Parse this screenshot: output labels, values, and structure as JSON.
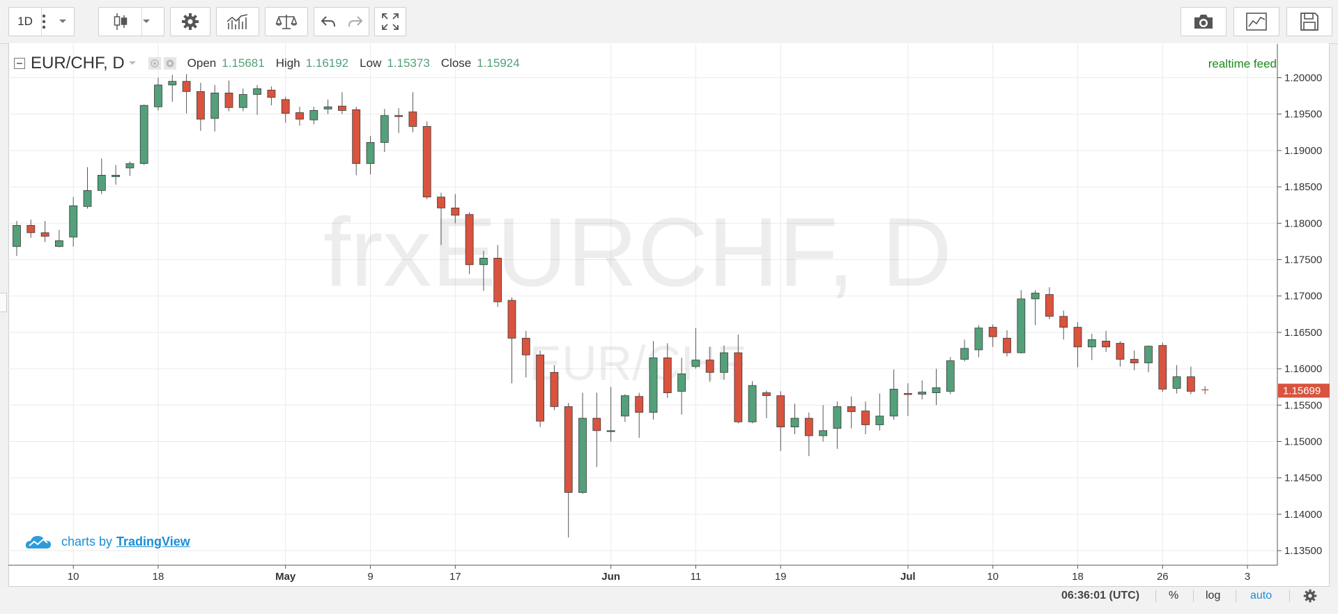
{
  "toolbar": {
    "interval": "1D",
    "icons": [
      "more-vertical-icon",
      "chevron-down-icon",
      "candles-icon",
      "chevron-down-icon",
      "gear-icon",
      "indicators-icon",
      "compare-icon",
      "undo-icon",
      "redo-icon",
      "fullscreen-icon",
      "camera-icon",
      "chart-layout-icon",
      "save-icon"
    ]
  },
  "legend": {
    "symbol": "EUR/CHF, D",
    "open_label": "Open",
    "open_value": "1.15681",
    "high_label": "High",
    "high_value": "1.16192",
    "low_label": "Low",
    "low_value": "1.15373",
    "close_label": "Close",
    "close_value": "1.15924"
  },
  "realtime_label": "realtime feed",
  "watermark": {
    "main": "frxEURCHF, D",
    "sub": "EUR/CHF"
  },
  "brand": {
    "prefix": "charts by",
    "name": "TradingView"
  },
  "status_bar": {
    "time": "06:36:01 (UTC)",
    "percent": "%",
    "log": "log",
    "auto": "auto"
  },
  "colors": {
    "up": "#53a07a",
    "down": "#d9533e",
    "price_badge": "#d9533e",
    "auto_link": "#1a8fd6"
  },
  "chart_data": {
    "type": "candlestick",
    "symbol": "EUR/CHF",
    "interval": "D",
    "y_range": [
      1.1335,
      1.2035
    ],
    "y_ticks": [
      "1.20000",
      "1.19500",
      "1.19000",
      "1.18500",
      "1.18000",
      "1.17500",
      "1.17000",
      "1.16500",
      "1.16000",
      "1.15500",
      "1.15000",
      "1.14500",
      "1.14000",
      "1.13500"
    ],
    "x_ticks": [
      {
        "index": 4,
        "label": "10"
      },
      {
        "index": 10,
        "label": "18"
      },
      {
        "index": 19,
        "label": "May"
      },
      {
        "index": 25,
        "label": "9"
      },
      {
        "index": 31,
        "label": "17"
      },
      {
        "index": 42,
        "label": "Jun"
      },
      {
        "index": 48,
        "label": "11"
      },
      {
        "index": 54,
        "label": "19"
      },
      {
        "index": 63,
        "label": "Jul"
      },
      {
        "index": 69,
        "label": "10"
      },
      {
        "index": 75,
        "label": "18"
      },
      {
        "index": 81,
        "label": "26"
      },
      {
        "index": 87,
        "label": "3"
      }
    ],
    "last_price": "1.15699",
    "candles": [
      {
        "o": 1.1768,
        "h": 1.1803,
        "l": 1.1755,
        "c": 1.1797
      },
      {
        "o": 1.1797,
        "h": 1.1805,
        "l": 1.178,
        "c": 1.1787
      },
      {
        "o": 1.1787,
        "h": 1.1803,
        "l": 1.1774,
        "c": 1.1782
      },
      {
        "o": 1.1768,
        "h": 1.1791,
        "l": 1.1767,
        "c": 1.1776
      },
      {
        "o": 1.1781,
        "h": 1.1836,
        "l": 1.1768,
        "c": 1.1824
      },
      {
        "o": 1.1823,
        "h": 1.1877,
        "l": 1.182,
        "c": 1.1845
      },
      {
        "o": 1.1845,
        "h": 1.1889,
        "l": 1.184,
        "c": 1.1866
      },
      {
        "o": 1.1864,
        "h": 1.188,
        "l": 1.1853,
        "c": 1.1866
      },
      {
        "o": 1.1876,
        "h": 1.1885,
        "l": 1.1865,
        "c": 1.1882
      },
      {
        "o": 1.1882,
        "h": 1.1963,
        "l": 1.188,
        "c": 1.1962
      },
      {
        "o": 1.196,
        "h": 1.2,
        "l": 1.1955,
        "c": 1.199
      },
      {
        "o": 1.199,
        "h": 1.2004,
        "l": 1.1967,
        "c": 1.1995
      },
      {
        "o": 1.1995,
        "h": 1.2005,
        "l": 1.1951,
        "c": 1.1981
      },
      {
        "o": 1.1981,
        "h": 1.1993,
        "l": 1.1927,
        "c": 1.1943
      },
      {
        "o": 1.1944,
        "h": 1.199,
        "l": 1.1926,
        "c": 1.1979
      },
      {
        "o": 1.1979,
        "h": 1.1996,
        "l": 1.1954,
        "c": 1.1959
      },
      {
        "o": 1.1959,
        "h": 1.1985,
        "l": 1.1954,
        "c": 1.1977
      },
      {
        "o": 1.1977,
        "h": 1.199,
        "l": 1.1949,
        "c": 1.1985
      },
      {
        "o": 1.1983,
        "h": 1.1988,
        "l": 1.1962,
        "c": 1.1973
      },
      {
        "o": 1.197,
        "h": 1.1974,
        "l": 1.1938,
        "c": 1.1951
      },
      {
        "o": 1.1952,
        "h": 1.196,
        "l": 1.1934,
        "c": 1.1943
      },
      {
        "o": 1.1942,
        "h": 1.196,
        "l": 1.1936,
        "c": 1.1955
      },
      {
        "o": 1.1957,
        "h": 1.197,
        "l": 1.195,
        "c": 1.196
      },
      {
        "o": 1.1961,
        "h": 1.198,
        "l": 1.195,
        "c": 1.1955
      },
      {
        "o": 1.1956,
        "h": 1.196,
        "l": 1.1866,
        "c": 1.1882
      },
      {
        "o": 1.1882,
        "h": 1.192,
        "l": 1.1867,
        "c": 1.1911
      },
      {
        "o": 1.1911,
        "h": 1.1957,
        "l": 1.1898,
        "c": 1.1948
      },
      {
        "o": 1.1948,
        "h": 1.1958,
        "l": 1.1924,
        "c": 1.1947
      },
      {
        "o": 1.1953,
        "h": 1.198,
        "l": 1.1925,
        "c": 1.1933
      },
      {
        "o": 1.1933,
        "h": 1.194,
        "l": 1.1833,
        "c": 1.1836
      },
      {
        "o": 1.1836,
        "h": 1.1842,
        "l": 1.177,
        "c": 1.1821
      },
      {
        "o": 1.1821,
        "h": 1.184,
        "l": 1.18,
        "c": 1.1811
      },
      {
        "o": 1.1812,
        "h": 1.1815,
        "l": 1.173,
        "c": 1.1743
      },
      {
        "o": 1.1743,
        "h": 1.1762,
        "l": 1.1707,
        "c": 1.1752
      },
      {
        "o": 1.1752,
        "h": 1.177,
        "l": 1.1685,
        "c": 1.1692
      },
      {
        "o": 1.1694,
        "h": 1.1698,
        "l": 1.158,
        "c": 1.1642
      },
      {
        "o": 1.1642,
        "h": 1.1652,
        "l": 1.1588,
        "c": 1.1619
      },
      {
        "o": 1.1619,
        "h": 1.1625,
        "l": 1.152,
        "c": 1.1528
      },
      {
        "o": 1.1595,
        "h": 1.1605,
        "l": 1.1543,
        "c": 1.1548
      },
      {
        "o": 1.1548,
        "h": 1.1553,
        "l": 1.1368,
        "c": 1.143
      },
      {
        "o": 1.143,
        "h": 1.1567,
        "l": 1.1428,
        "c": 1.1532
      },
      {
        "o": 1.1532,
        "h": 1.1567,
        "l": 1.1465,
        "c": 1.1515
      },
      {
        "o": 1.1515,
        "h": 1.1575,
        "l": 1.15,
        "c": 1.1515
      },
      {
        "o": 1.1535,
        "h": 1.1565,
        "l": 1.1527,
        "c": 1.1563
      },
      {
        "o": 1.1562,
        "h": 1.1567,
        "l": 1.1505,
        "c": 1.154
      },
      {
        "o": 1.154,
        "h": 1.1638,
        "l": 1.153,
        "c": 1.1615
      },
      {
        "o": 1.1615,
        "h": 1.1635,
        "l": 1.156,
        "c": 1.1567
      },
      {
        "o": 1.1569,
        "h": 1.1615,
        "l": 1.1537,
        "c": 1.1593
      },
      {
        "o": 1.1603,
        "h": 1.1656,
        "l": 1.16,
        "c": 1.1612
      },
      {
        "o": 1.1612,
        "h": 1.163,
        "l": 1.1582,
        "c": 1.1595
      },
      {
        "o": 1.1595,
        "h": 1.1632,
        "l": 1.1585,
        "c": 1.1622
      },
      {
        "o": 1.1622,
        "h": 1.1647,
        "l": 1.1525,
        "c": 1.1527
      },
      {
        "o": 1.1527,
        "h": 1.1583,
        "l": 1.1525,
        "c": 1.1577
      },
      {
        "o": 1.1567,
        "h": 1.157,
        "l": 1.1532,
        "c": 1.1563
      },
      {
        "o": 1.1563,
        "h": 1.1569,
        "l": 1.1487,
        "c": 1.152
      },
      {
        "o": 1.152,
        "h": 1.1552,
        "l": 1.151,
        "c": 1.1532
      },
      {
        "o": 1.1532,
        "h": 1.154,
        "l": 1.148,
        "c": 1.1508
      },
      {
        "o": 1.1508,
        "h": 1.155,
        "l": 1.15,
        "c": 1.1515
      },
      {
        "o": 1.1518,
        "h": 1.1555,
        "l": 1.149,
        "c": 1.1548
      },
      {
        "o": 1.1548,
        "h": 1.1562,
        "l": 1.1518,
        "c": 1.1541
      },
      {
        "o": 1.1542,
        "h": 1.1555,
        "l": 1.151,
        "c": 1.1523
      },
      {
        "o": 1.1523,
        "h": 1.1566,
        "l": 1.1515,
        "c": 1.1535
      },
      {
        "o": 1.1535,
        "h": 1.1599,
        "l": 1.153,
        "c": 1.1572
      },
      {
        "o": 1.1566,
        "h": 1.158,
        "l": 1.1535,
        "c": 1.1565
      },
      {
        "o": 1.1565,
        "h": 1.1584,
        "l": 1.1558,
        "c": 1.1568
      },
      {
        "o": 1.1567,
        "h": 1.16,
        "l": 1.155,
        "c": 1.1574
      },
      {
        "o": 1.1569,
        "h": 1.1616,
        "l": 1.1565,
        "c": 1.1611
      },
      {
        "o": 1.1613,
        "h": 1.164,
        "l": 1.161,
        "c": 1.1628
      },
      {
        "o": 1.1626,
        "h": 1.166,
        "l": 1.1616,
        "c": 1.1656
      },
      {
        "o": 1.1657,
        "h": 1.1661,
        "l": 1.163,
        "c": 1.1644
      },
      {
        "o": 1.1642,
        "h": 1.1653,
        "l": 1.1617,
        "c": 1.1622
      },
      {
        "o": 1.1622,
        "h": 1.1708,
        "l": 1.1621,
        "c": 1.1696
      },
      {
        "o": 1.1696,
        "h": 1.1708,
        "l": 1.166,
        "c": 1.1704
      },
      {
        "o": 1.1702,
        "h": 1.1712,
        "l": 1.1668,
        "c": 1.1672
      },
      {
        "o": 1.1672,
        "h": 1.168,
        "l": 1.164,
        "c": 1.1657
      },
      {
        "o": 1.1657,
        "h": 1.1664,
        "l": 1.1602,
        "c": 1.163
      },
      {
        "o": 1.163,
        "h": 1.1648,
        "l": 1.1612,
        "c": 1.164
      },
      {
        "o": 1.1638,
        "h": 1.1652,
        "l": 1.1623,
        "c": 1.163
      },
      {
        "o": 1.1635,
        "h": 1.1638,
        "l": 1.1603,
        "c": 1.1613
      },
      {
        "o": 1.1613,
        "h": 1.1625,
        "l": 1.1598,
        "c": 1.1608
      },
      {
        "o": 1.1608,
        "h": 1.1632,
        "l": 1.1595,
        "c": 1.1631
      },
      {
        "o": 1.1632,
        "h": 1.1636,
        "l": 1.1568,
        "c": 1.1572
      },
      {
        "o": 1.1573,
        "h": 1.1605,
        "l": 1.1566,
        "c": 1.1589
      },
      {
        "o": 1.1589,
        "h": 1.1603,
        "l": 1.1565,
        "c": 1.1569
      },
      {
        "o": 1.1571,
        "h": 1.1576,
        "l": 1.1565,
        "c": 1.157
      }
    ]
  }
}
